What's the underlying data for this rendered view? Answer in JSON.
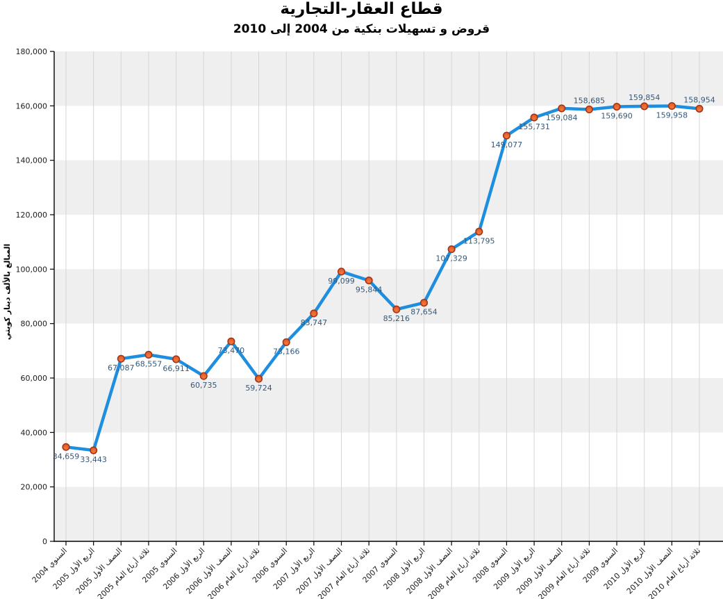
{
  "page": {
    "background": "#FFFFFF"
  },
  "chart_data": {
    "type": "line",
    "title": "قطاع العقار-التجارية",
    "subtitle": "قروض و تسهيلات بنكية من 2004 إلى 2010",
    "xlabel": "",
    "ylabel": "المبالغ بالألف دينار كويتي",
    "ylim": [
      0,
      180000
    ],
    "ytick_step": 20000,
    "ytick_labels": [
      "0",
      "20,000",
      "40,000",
      "60,000",
      "80,000",
      "100,000",
      "120,000",
      "140,000",
      "160,000",
      "180,000"
    ],
    "grid": true,
    "legend": false,
    "categories": [
      "السنوي 2004",
      "الربع الأول 2005",
      "النصف الأول 2005",
      "ثلاثة أرباع العام 2005",
      "السنوي 2005",
      "الربع الأول 2006",
      "النصف الأول 2006",
      "ثلاثة أرباع العام 2006",
      "السنوي 2006",
      "الربع الأول 2007",
      "النصف الأول 2007",
      "ثلاثة أرباع العام 2007",
      "السنوي 2007",
      "الربع الأول 2008",
      "النصف الأول 2008",
      "ثلاثة أرباع العام 2008",
      "السنوي 2008",
      "الربع الأول 2009",
      "النصف الأول 2009",
      "ثلاثة أرباع العام 2009",
      "السنوي 2009",
      "الربع الأول 2010",
      "النصف الأول 2010",
      "ثلاثة أرباع العام 2010"
    ],
    "values": [
      34659,
      33443,
      67087,
      68557,
      66911,
      60735,
      73470,
      59724,
      73166,
      83747,
      99099,
      95844,
      85216,
      87654,
      107329,
      113795,
      149077,
      155731,
      159084,
      158685,
      159690,
      159854,
      159958,
      158954
    ],
    "value_labels": [
      "34,659",
      "33,443",
      "67,087",
      "68,557",
      "66,911",
      "60,735",
      "73,470",
      "59,724",
      "73,166",
      "83,747",
      "99,099",
      "95,844",
      "85,216",
      "87,654",
      "107,329",
      "113,795",
      "149,077",
      "155,731",
      "159,084",
      "158,685",
      "159,690",
      "159,854",
      "159,958",
      "158,954"
    ],
    "value_label_positions": [
      "below",
      "below",
      "below",
      "below",
      "below",
      "below",
      "below",
      "below",
      "below",
      "below",
      "below",
      "below",
      "below",
      "below",
      "below",
      "below",
      "below",
      "below",
      "below",
      "above",
      "below",
      "above",
      "below",
      "above"
    ],
    "colors": {
      "line": "#1E8EDE",
      "marker_fill": "#E2582A",
      "marker_fill_light": "#F4793F",
      "marker_stroke": "#A03214",
      "value_label": "#35587B",
      "band": "#EFEFEF",
      "gridline": "#D5D5D5",
      "axis": "#000000",
      "tick_label": "#1A1A1A"
    }
  }
}
